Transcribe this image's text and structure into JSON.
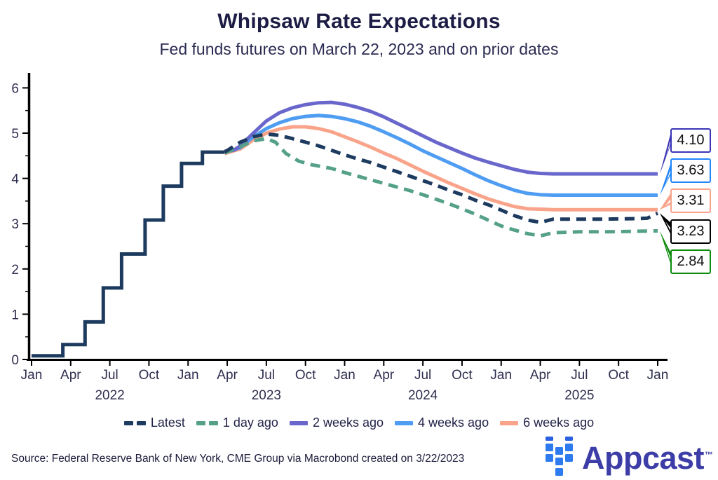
{
  "header": {
    "title": "Whipsaw Rate Expectations",
    "subtitle": "Fed funds futures on March 22, 2023 and on prior dates"
  },
  "footer": {
    "source": "Source: Federal Reserve Bank of New York, CME Group via Macrobond created on 3/22/2023",
    "logo": {
      "text": "Appcast",
      "tm": "™",
      "square_color": "#2e7bf0",
      "half_square_color": "#2a5fe0",
      "text_color": "#3d3da8"
    }
  },
  "colors": {
    "axis": "#000000",
    "tick_label": "#2e2e50",
    "legend_label": "#23234a"
  },
  "chart_data": {
    "type": "line",
    "title": "Whipsaw Rate Expectations",
    "subtitle": "Fed funds futures on March 22, 2023 and on prior dates",
    "x_axis": {
      "unit": "months since Jan 2022",
      "tick_months": [
        0,
        3,
        6,
        9,
        12,
        15,
        18,
        21,
        24,
        27,
        30,
        33,
        36,
        39,
        42,
        45,
        48
      ],
      "tick_labels": [
        "Jan",
        "Apr",
        "Jul",
        "Oct",
        "Jan",
        "Apr",
        "Jul",
        "Oct",
        "Jan",
        "Apr",
        "Jul",
        "Oct",
        "Jan",
        "Apr",
        "Jul",
        "Oct",
        "Jan"
      ],
      "years": [
        {
          "label": "2022",
          "month": 6
        },
        {
          "label": "2023",
          "month": 18
        },
        {
          "label": "2024",
          "month": 30
        },
        {
          "label": "2025",
          "month": 42
        }
      ]
    },
    "y_axis": {
      "ticks": [
        0,
        1,
        2,
        3,
        4,
        5,
        6
      ],
      "minor_step": 0.5,
      "range": [
        0,
        6.3
      ]
    },
    "history": {
      "series": "Latest",
      "style": "solid",
      "color": "#1d3a5f",
      "points": [
        [
          0,
          0.08
        ],
        [
          2.4,
          0.08
        ],
        [
          2.4,
          0.33
        ],
        [
          4.1,
          0.33
        ],
        [
          4.1,
          0.83
        ],
        [
          5.5,
          0.83
        ],
        [
          5.5,
          1.58
        ],
        [
          6.9,
          1.58
        ],
        [
          6.9,
          2.33
        ],
        [
          8.7,
          2.33
        ],
        [
          8.7,
          3.08
        ],
        [
          10.1,
          3.08
        ],
        [
          10.1,
          3.83
        ],
        [
          11.5,
          3.83
        ],
        [
          11.5,
          4.33
        ],
        [
          13.1,
          4.33
        ],
        [
          13.1,
          4.58
        ],
        [
          14.8,
          4.58
        ]
      ]
    },
    "series": [
      {
        "name": "Latest",
        "style": "dashed",
        "color": "#1d3a5f",
        "end_value": 3.23,
        "points": [
          [
            14.8,
            4.58
          ],
          [
            16,
            4.8
          ],
          [
            17,
            4.92
          ],
          [
            18,
            4.98
          ],
          [
            19,
            4.95
          ],
          [
            20,
            4.88
          ],
          [
            21,
            4.8
          ],
          [
            22,
            4.72
          ],
          [
            23,
            4.62
          ],
          [
            24,
            4.52
          ],
          [
            25,
            4.43
          ],
          [
            26,
            4.35
          ],
          [
            27,
            4.25
          ],
          [
            28,
            4.15
          ],
          [
            29,
            4.05
          ],
          [
            30,
            3.95
          ],
          [
            31,
            3.85
          ],
          [
            32,
            3.74
          ],
          [
            33,
            3.64
          ],
          [
            34,
            3.52
          ],
          [
            35,
            3.42
          ],
          [
            36,
            3.3
          ],
          [
            37,
            3.18
          ],
          [
            38,
            3.08
          ],
          [
            39,
            3.03
          ],
          [
            40,
            3.1
          ],
          [
            42,
            3.1
          ],
          [
            44,
            3.1
          ],
          [
            46,
            3.11
          ],
          [
            47.2,
            3.12
          ],
          [
            48,
            3.23
          ]
        ]
      },
      {
        "name": "1 day ago",
        "style": "dashed",
        "color": "#55a089",
        "end_value": 2.84,
        "points": [
          [
            14.8,
            4.56
          ],
          [
            16,
            4.7
          ],
          [
            17,
            4.83
          ],
          [
            18,
            4.88
          ],
          [
            18.7,
            4.8
          ],
          [
            19.5,
            4.55
          ],
          [
            20.5,
            4.38
          ],
          [
            21.5,
            4.3
          ],
          [
            23,
            4.22
          ],
          [
            24,
            4.13
          ],
          [
            25,
            4.05
          ],
          [
            26,
            3.97
          ],
          [
            27,
            3.89
          ],
          [
            28,
            3.81
          ],
          [
            29,
            3.73
          ],
          [
            30,
            3.64
          ],
          [
            31,
            3.54
          ],
          [
            32,
            3.44
          ],
          [
            33,
            3.33
          ],
          [
            34,
            3.21
          ],
          [
            35,
            3.08
          ],
          [
            36,
            2.95
          ],
          [
            37,
            2.86
          ],
          [
            38,
            2.78
          ],
          [
            39,
            2.73
          ],
          [
            40,
            2.8
          ],
          [
            42,
            2.82
          ],
          [
            44,
            2.82
          ],
          [
            46,
            2.83
          ],
          [
            48,
            2.84
          ]
        ]
      },
      {
        "name": "2 weeks ago",
        "style": "solid",
        "color": "#6a67cc",
        "end_value": 4.1,
        "points": [
          [
            14.8,
            4.6
          ],
          [
            15.5,
            4.62
          ],
          [
            16,
            4.72
          ],
          [
            17,
            5.0
          ],
          [
            18,
            5.27
          ],
          [
            19,
            5.45
          ],
          [
            20,
            5.56
          ],
          [
            21,
            5.63
          ],
          [
            22,
            5.67
          ],
          [
            23,
            5.68
          ],
          [
            24,
            5.64
          ],
          [
            25,
            5.57
          ],
          [
            26,
            5.48
          ],
          [
            27,
            5.36
          ],
          [
            28,
            5.22
          ],
          [
            29,
            5.08
          ],
          [
            30,
            4.94
          ],
          [
            31,
            4.8
          ],
          [
            32,
            4.68
          ],
          [
            33,
            4.56
          ],
          [
            34,
            4.45
          ],
          [
            35,
            4.36
          ],
          [
            36,
            4.28
          ],
          [
            37,
            4.2
          ],
          [
            38,
            4.14
          ],
          [
            39,
            4.11
          ],
          [
            40,
            4.1
          ],
          [
            44,
            4.1
          ],
          [
            48,
            4.1
          ]
        ]
      },
      {
        "name": "4 weeks ago",
        "style": "solid",
        "color": "#4f9df2",
        "end_value": 3.63,
        "points": [
          [
            14.8,
            4.57
          ],
          [
            16,
            4.68
          ],
          [
            17,
            4.92
          ],
          [
            18,
            5.1
          ],
          [
            19,
            5.23
          ],
          [
            20,
            5.32
          ],
          [
            21,
            5.37
          ],
          [
            22,
            5.39
          ],
          [
            23,
            5.37
          ],
          [
            24,
            5.32
          ],
          [
            25,
            5.25
          ],
          [
            26,
            5.15
          ],
          [
            27,
            5.03
          ],
          [
            28,
            4.9
          ],
          [
            29,
            4.76
          ],
          [
            30,
            4.61
          ],
          [
            31,
            4.48
          ],
          [
            32,
            4.35
          ],
          [
            33,
            4.22
          ],
          [
            34,
            4.08
          ],
          [
            35,
            3.95
          ],
          [
            36,
            3.84
          ],
          [
            37,
            3.74
          ],
          [
            38,
            3.67
          ],
          [
            39,
            3.64
          ],
          [
            40,
            3.63
          ],
          [
            44,
            3.63
          ],
          [
            48,
            3.63
          ]
        ]
      },
      {
        "name": "6 weeks ago",
        "style": "solid",
        "color": "#f9a48a",
        "end_value": 3.31,
        "points": [
          [
            14.8,
            4.55
          ],
          [
            16,
            4.65
          ],
          [
            17,
            4.85
          ],
          [
            18,
            5.0
          ],
          [
            19,
            5.09
          ],
          [
            20,
            5.14
          ],
          [
            21,
            5.14
          ],
          [
            22,
            5.1
          ],
          [
            23,
            5.03
          ],
          [
            24,
            4.92
          ],
          [
            25,
            4.81
          ],
          [
            26,
            4.69
          ],
          [
            27,
            4.56
          ],
          [
            28,
            4.44
          ],
          [
            29,
            4.3
          ],
          [
            30,
            4.16
          ],
          [
            31,
            4.03
          ],
          [
            32,
            3.9
          ],
          [
            33,
            3.78
          ],
          [
            34,
            3.66
          ],
          [
            35,
            3.55
          ],
          [
            36,
            3.46
          ],
          [
            37,
            3.38
          ],
          [
            38,
            3.33
          ],
          [
            39,
            3.32
          ],
          [
            40,
            3.31
          ],
          [
            44,
            3.31
          ],
          [
            48,
            3.31
          ]
        ]
      }
    ],
    "end_labels": [
      {
        "text": "4.10",
        "value": 4.1,
        "box_color": "#3a35b5"
      },
      {
        "text": "3.63",
        "value": 3.63,
        "box_color": "#2286fa"
      },
      {
        "text": "3.31",
        "value": 3.31,
        "box_color": "#f9a48a"
      },
      {
        "text": "3.23",
        "value": 3.23,
        "box_color": "#000000"
      },
      {
        "text": "2.84",
        "value": 2.84,
        "box_color": "#0d8c0d"
      }
    ],
    "legend": [
      "Latest",
      "1 day ago",
      "2 weeks ago",
      "4 weeks ago",
      "6 weeks ago"
    ],
    "legend_position": "bottom",
    "grid": false
  }
}
